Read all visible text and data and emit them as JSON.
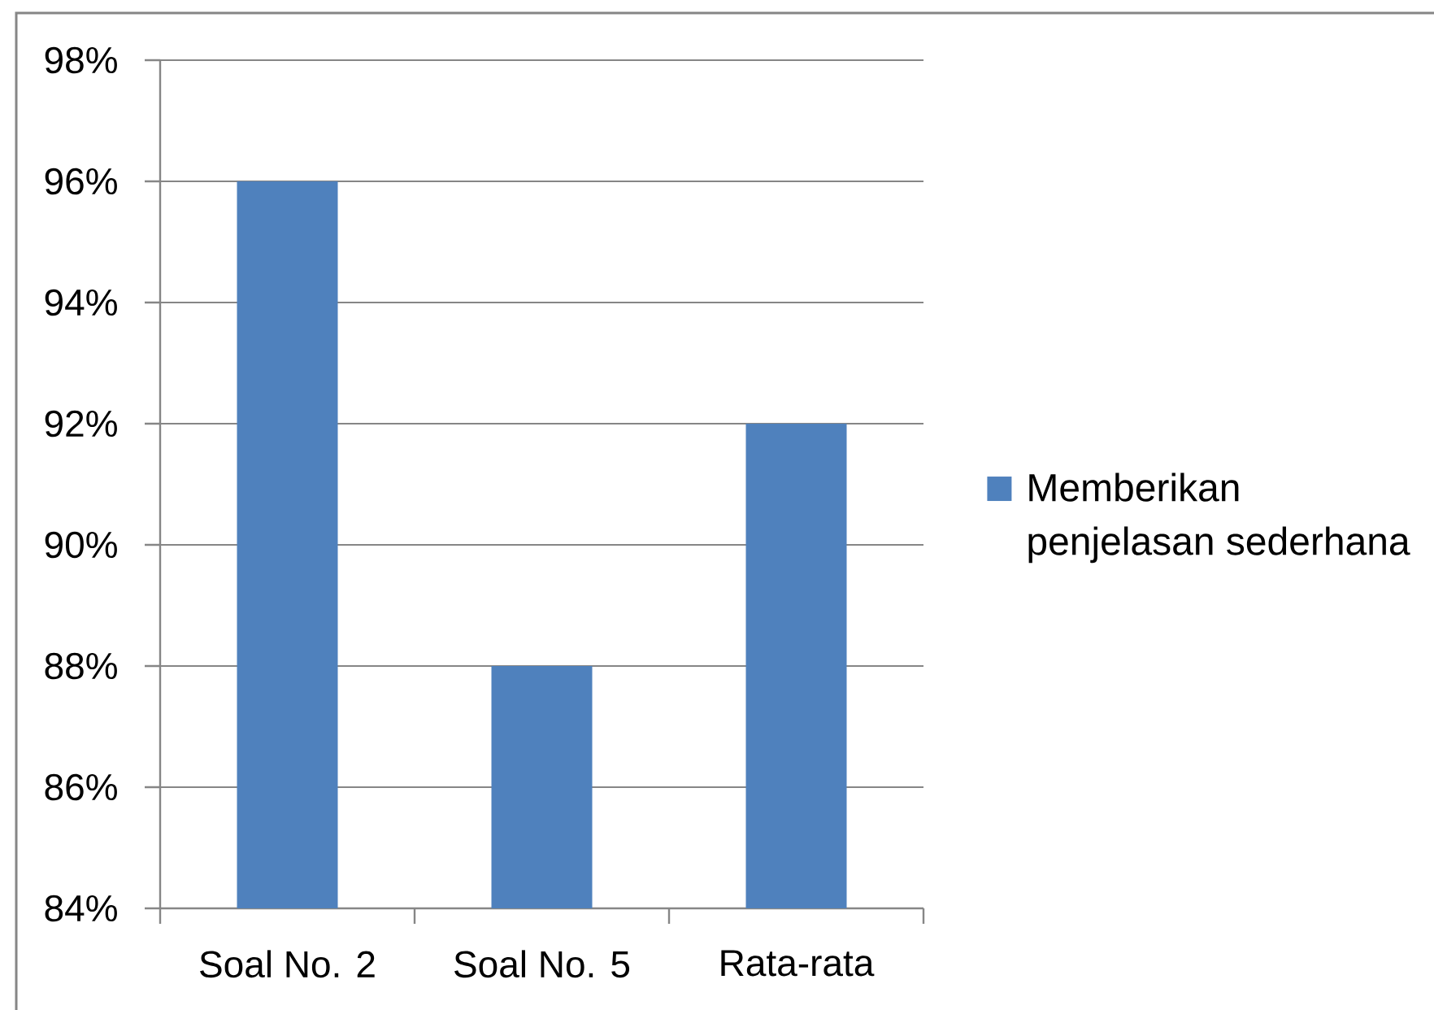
{
  "chart_data": {
    "type": "bar",
    "categories": [
      "Soal No. 2",
      "Soal No. 5",
      "Rata-rata"
    ],
    "series": [
      {
        "name": "Memberikan penjelasan sederhana",
        "color": "#4f81bd",
        "values": [
          96,
          88,
          92
        ]
      }
    ],
    "ylim": [
      84,
      98
    ],
    "yticks": [
      {
        "value": 84,
        "label": "84%"
      },
      {
        "value": 86,
        "label": "86%"
      },
      {
        "value": 88,
        "label": "88%"
      },
      {
        "value": 90,
        "label": "90%"
      },
      {
        "value": 92,
        "label": "92%"
      },
      {
        "value": 94,
        "label": "94%"
      },
      {
        "value": 96,
        "label": "96%"
      },
      {
        "value": 98,
        "label": "98%"
      }
    ],
    "grid": "y",
    "legend": "right"
  }
}
